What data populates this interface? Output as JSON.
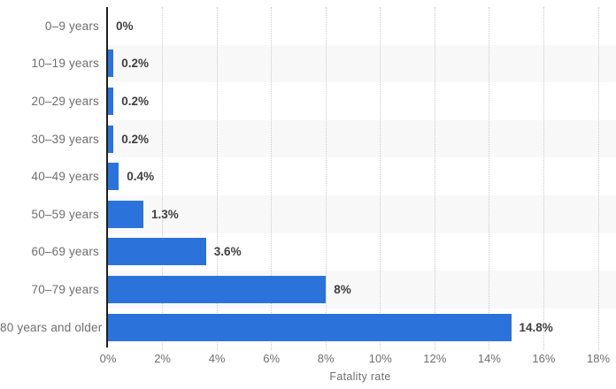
{
  "chart_data": {
    "type": "bar",
    "orientation": "horizontal",
    "title": "",
    "xlabel": "Fatality rate",
    "ylabel": "",
    "categories": [
      "0–9 years",
      "10–19 years",
      "20–29 years",
      "30–39 years",
      "40–49 years",
      "50–59 years",
      "60–69 years",
      "70–79 years",
      "80 years and older"
    ],
    "values": [
      0,
      0.2,
      0.2,
      0.2,
      0.4,
      1.3,
      3.6,
      8,
      14.8
    ],
    "value_labels": [
      "0%",
      "0.2%",
      "0.2%",
      "0.2%",
      "0.4%",
      "1.3%",
      "3.6%",
      "8%",
      "14.8%"
    ],
    "x_ticks": [
      "0%",
      "2%",
      "4%",
      "6%",
      "8%",
      "10%",
      "12%",
      "14%",
      "16%",
      "18%"
    ],
    "xlim": [
      0,
      18
    ],
    "grid": "vertical-dotted",
    "legend": "none",
    "colors": {
      "bar": "#2b73da",
      "row_stripe": "#f8f8f8",
      "gridline": "#c9c9c9",
      "axis_line": "#1f1f1f",
      "category_label": "#6e6e6e",
      "value_label": "#3f3f3f"
    }
  }
}
